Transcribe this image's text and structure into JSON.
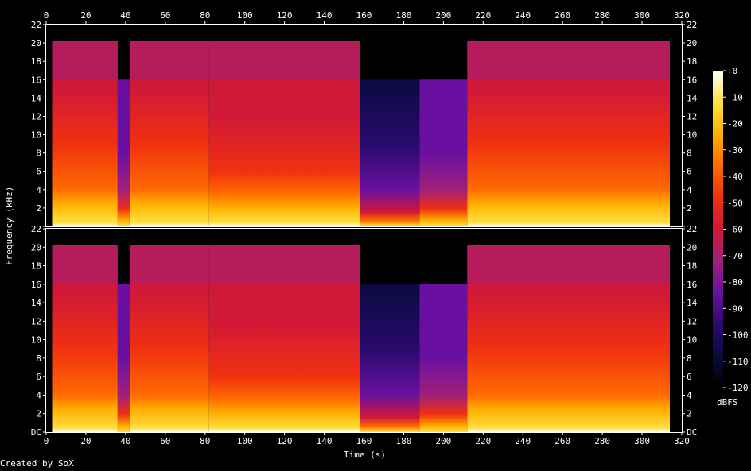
{
  "chart_data": {
    "type": "heatmap",
    "title": "",
    "xlabel": "Time (s)",
    "ylabel": "Frequency (kHz)",
    "colorbar_label": "dBFS",
    "xlim": [
      0,
      320
    ],
    "ylim_khz": [
      0,
      22
    ],
    "x_ticks": [
      "0",
      "20",
      "40",
      "60",
      "80",
      "100",
      "120",
      "140",
      "160",
      "180",
      "200",
      "220",
      "240",
      "260",
      "280",
      "300",
      "320"
    ],
    "y_ticks": [
      "DC",
      "2",
      "4",
      "6",
      "8",
      "10",
      "12",
      "14",
      "16",
      "18",
      "20",
      "22"
    ],
    "colorbar_ticks": [
      "+0",
      "-10",
      "-20",
      "-30",
      "-40",
      "-50",
      "-60",
      "-70",
      "-80",
      "-90",
      "-100",
      "-110",
      "-120"
    ],
    "colorbar_range_dbfs": [
      -120,
      0
    ],
    "channels": [
      "left",
      "right"
    ],
    "segments": [
      {
        "t_start": 3,
        "t_end": 36,
        "max_freq_khz": 20.2,
        "level": "loud"
      },
      {
        "t_start": 36,
        "t_end": 42,
        "max_freq_khz": 16,
        "level": "quiet"
      },
      {
        "t_start": 42,
        "t_end": 82,
        "max_freq_khz": 20.2,
        "level": "loud"
      },
      {
        "t_start": 82,
        "t_end": 158,
        "max_freq_khz": 20.2,
        "level": "medium"
      },
      {
        "t_start": 158,
        "t_end": 188,
        "max_freq_khz": 16,
        "level": "very-quiet"
      },
      {
        "t_start": 188,
        "t_end": 212,
        "max_freq_khz": 16,
        "level": "quiet"
      },
      {
        "t_start": 212,
        "t_end": 314,
        "max_freq_khz": 20.2,
        "level": "loud"
      }
    ],
    "colors": {
      "background": "#000000",
      "colormap": [
        "#000000",
        "#0a0a40",
        "#2a0a6e",
        "#6a10a0",
        "#a0207a",
        "#d01838",
        "#f03010",
        "#ff6a00",
        "#ffb000",
        "#ffe040",
        "#ffffff"
      ]
    }
  },
  "footer": {
    "credit": "Created by SoX"
  }
}
